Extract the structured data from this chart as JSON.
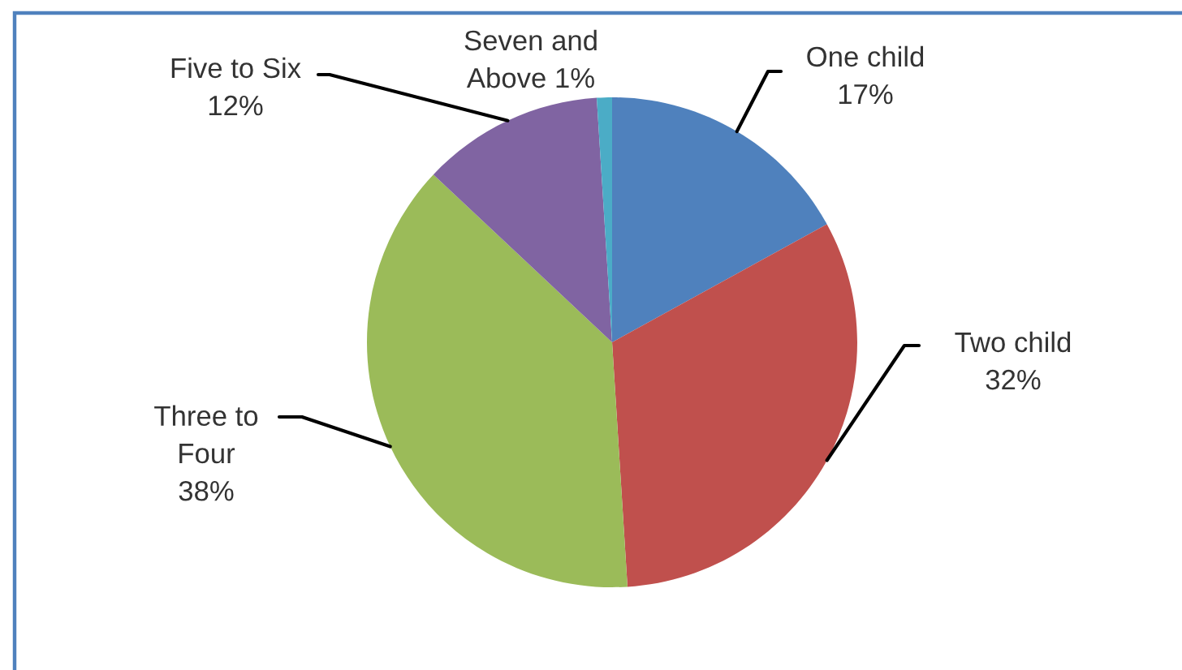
{
  "chart_data": {
    "type": "pie",
    "categories": [
      "One child",
      "Two child",
      "Three to Four",
      "Five to Six",
      "Seven and Above"
    ],
    "values": [
      17,
      32,
      38,
      12,
      1
    ],
    "colors": [
      "#4f81bd",
      "#c0504d",
      "#9bbb59",
      "#8064a2",
      "#4bacc6"
    ],
    "value_labels": [
      "17%",
      "32%",
      "38%",
      "12%",
      "1%"
    ]
  }
}
